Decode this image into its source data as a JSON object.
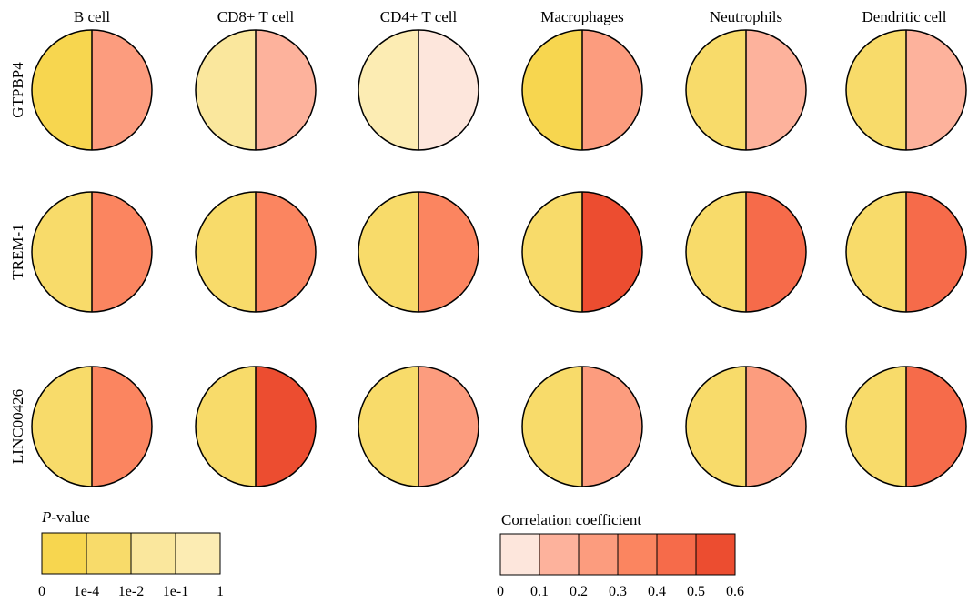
{
  "chart_data": {
    "type": "heatmap",
    "columns": [
      "B cell",
      "CD8+ T cell",
      "CD4+ T cell",
      "Macrophages",
      "Neutrophils",
      "Dendritic cell"
    ],
    "rows": [
      "GTPBP4",
      "TREM-1",
      "LINC00426"
    ],
    "p_value_bin": [
      [
        0,
        2,
        3,
        0,
        1,
        1
      ],
      [
        1,
        1,
        1,
        1,
        1,
        1
      ],
      [
        1,
        1,
        1,
        1,
        1,
        1
      ]
    ],
    "correlation": [
      [
        0.25,
        0.15,
        0.05,
        0.25,
        0.15,
        0.15
      ],
      [
        0.35,
        0.35,
        0.35,
        0.55,
        0.45,
        0.45
      ],
      [
        0.35,
        0.55,
        0.25,
        0.25,
        0.25,
        0.45
      ]
    ],
    "p_value_legend": {
      "title_italic": "P",
      "title_rest": "-value",
      "tick_labels": [
        "0",
        "1e-4",
        "1e-2",
        "1e-1",
        "1"
      ],
      "colors": [
        "#f7d64f",
        "#f8db6a",
        "#fae79d",
        "#fcecb3"
      ]
    },
    "correlation_legend": {
      "title": "Correlation coefficient",
      "tick_labels": [
        "0",
        "0.1",
        "0.2",
        "0.3",
        "0.4",
        "0.5",
        "0.6"
      ],
      "colors": [
        "#fde6dc",
        "#fdb29c",
        "#fc9c7e",
        "#fb8560",
        "#f66b4a",
        "#ec4d30"
      ]
    }
  }
}
